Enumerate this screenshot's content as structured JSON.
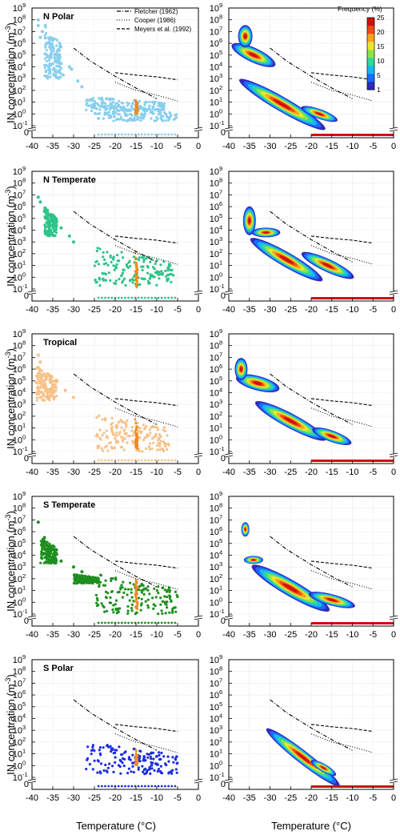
{
  "figure": {
    "ylabel_main": "IN concentration (m",
    "ylabel_sup": "-3",
    "ylabel_end": ")",
    "xlabel": "Temperature (°C)"
  },
  "axes": {
    "x_ticks": [
      "-40",
      "-35",
      "-30",
      "-25",
      "-20",
      "-15",
      "-10",
      "-5",
      "0"
    ],
    "y_exponents": [
      "-1",
      "0",
      "1",
      "2",
      "3",
      "4",
      "5",
      "6",
      "7",
      "8",
      "9"
    ],
    "y_zero_label": "0",
    "y_tick_base": "10"
  },
  "legend": {
    "fletcher": "Fletcher (1962)",
    "cooper": "Cooper (1986)",
    "meyers": "Meyers et al. (1992)"
  },
  "colorbar": {
    "title": "Frequency (%)",
    "ticks": [
      "25",
      "20",
      "15",
      "10",
      "5",
      "1"
    ],
    "colors": [
      "#2e2ab8",
      "#1a6cff",
      "#17b7f5",
      "#2fd89a",
      "#8fe24d",
      "#e7e830",
      "#f6a21e",
      "#f04a18",
      "#cf1010"
    ]
  },
  "panels": [
    {
      "title": "N Polar",
      "color": "#87cfee"
    },
    {
      "title": "N Temperate",
      "color": "#2ec488"
    },
    {
      "title": "Tropical",
      "color": "#f7c188"
    },
    {
      "title": "S Temperate",
      "color": "#1e8f1e"
    },
    {
      "title": "S Polar",
      "color": "#1b2ee0"
    }
  ],
  "highlight_color": "#f08a1c",
  "chart_data": [
    {
      "type": "scatter",
      "panel": "N Polar",
      "xlim": [
        -40,
        0
      ],
      "ylim_log10": [
        -1,
        9
      ],
      "y_break_value": 0,
      "series": [
        {
          "kind": "points",
          "color_key": "#87cfee",
          "description": "IN samples",
          "points": [
            [
              -38.5,
              8.0
            ],
            [
              -38.5,
              7.5
            ],
            [
              -38,
              6.5
            ],
            [
              -37.5,
              7.0
            ],
            [
              -36.5,
              6.0
            ],
            [
              -35.5,
              5.0
            ],
            [
              -33,
              4.3
            ],
            [
              -32.5,
              3.3
            ],
            [
              -31,
              4.0
            ],
            [
              -30.5,
              3.8
            ],
            [
              -29,
              2.8
            ],
            [
              -28,
              2.3
            ]
          ],
          "bands": [
            [
              -37,
              -33,
              3.0,
              7.8
            ],
            [
              -27,
              -8,
              0.2,
              1.5
            ],
            [
              -25,
              -5,
              -0.6,
              0.8
            ]
          ]
        },
        {
          "kind": "points",
          "color_key": "#f08a1c",
          "bands": [
            [
              -15.2,
              -14.6,
              0.0,
              1.4
            ]
          ]
        }
      ],
      "parameterizations": {
        "fletcher": [
          [
            -30,
            5.6
          ],
          [
            -26,
            4.5
          ],
          [
            -20,
            3.2
          ],
          [
            -15,
            2.2
          ],
          [
            -10,
            1.3
          ]
        ],
        "cooper": [
          [
            -20,
            2.7
          ],
          [
            -15,
            2.0
          ],
          [
            -10,
            1.6
          ],
          [
            -5,
            1.1
          ]
        ],
        "meyers": [
          [
            -20,
            3.5
          ],
          [
            -15,
            3.3
          ],
          [
            -10,
            3.15
          ],
          [
            -5,
            2.9
          ]
        ]
      }
    },
    {
      "type": "scatter",
      "panel": "N Temperate",
      "xlim": [
        -40,
        0
      ],
      "ylim_log10": [
        -1,
        9
      ],
      "series": [
        {
          "kind": "points",
          "color_key": "#2ec488",
          "points": [
            [
              -38.5,
              6.8
            ],
            [
              -38,
              6.4
            ],
            [
              -37,
              5.6
            ],
            [
              -36,
              4.8
            ],
            [
              -33,
              4.2
            ],
            [
              -31,
              3.5
            ],
            [
              -30,
              3.0
            ]
          ],
          "bands": [
            [
              -37,
              -34,
              3.5,
              6.0
            ],
            [
              -25,
              -6,
              -0.7,
              2.6
            ]
          ]
        },
        {
          "kind": "points",
          "color_key": "#f08a1c",
          "bands": [
            [
              -15.2,
              -14.6,
              -0.9,
              2.2
            ]
          ]
        }
      ]
    },
    {
      "type": "scatter",
      "panel": "Tropical",
      "xlim": [
        -40,
        0
      ],
      "ylim_log10": [
        -1,
        9
      ],
      "series": [
        {
          "kind": "points",
          "color_key": "#f7c188",
          "points": [
            [
              -38.5,
              7.2
            ],
            [
              -38,
              6.6
            ],
            [
              -36,
              5.5
            ],
            [
              -34,
              5.0
            ],
            [
              -32,
              4.2
            ],
            [
              -30,
              3.6
            ]
          ],
          "bands": [
            [
              -39,
              -34,
              3.3,
              6.3
            ],
            [
              -25,
              -7,
              -1.0,
              2.3
            ]
          ]
        },
        {
          "kind": "points",
          "color_key": "#f08a1c",
          "bands": [
            [
              -15.2,
              -14.6,
              -0.9,
              1.8
            ]
          ]
        }
      ]
    },
    {
      "type": "scatter",
      "panel": "S Temperate",
      "xlim": [
        -40,
        0
      ],
      "ylim_log10": [
        -1,
        9
      ],
      "series": [
        {
          "kind": "points",
          "color_key": "#1e8f1e",
          "points": [
            [
              -38.5,
              6.8
            ],
            [
              -37,
              5.5
            ],
            [
              -35,
              4.5
            ],
            [
              -33,
              3.5
            ],
            [
              -30,
              3.0
            ],
            [
              -28,
              2.6
            ]
          ],
          "bands": [
            [
              -38,
              -34,
              3.3,
              5.5
            ],
            [
              -30,
              -24,
              1.6,
              2.4
            ],
            [
              -25,
              -5,
              -1.0,
              2.5
            ]
          ]
        },
        {
          "kind": "points",
          "color_key": "#f08a1c",
          "bands": [
            [
              -15.2,
              -14.6,
              -0.6,
              2.5
            ]
          ]
        }
      ]
    },
    {
      "type": "scatter",
      "panel": "S Polar",
      "xlim": [
        -40,
        0
      ],
      "ylim_log10": [
        -1,
        9
      ],
      "series": [
        {
          "kind": "points",
          "color_key": "#1b2ee0",
          "bands": [
            [
              -27,
              -5,
              -0.7,
              2.0
            ]
          ]
        },
        {
          "kind": "points",
          "color_key": "#f08a1c",
          "bands": [
            [
              -15.2,
              -14.6,
              0.0,
              1.5
            ]
          ]
        }
      ]
    },
    {
      "type": "heatmap",
      "panel": "N Polar frequency",
      "xlim": [
        -40,
        0
      ],
      "ylim_log10": [
        -1,
        9
      ],
      "zlim_percent": [
        1,
        25
      ]
    },
    {
      "type": "heatmap",
      "panel": "N Temperate frequency",
      "xlim": [
        -40,
        0
      ],
      "ylim_log10": [
        -1,
        9
      ]
    },
    {
      "type": "heatmap",
      "panel": "Tropical frequency",
      "xlim": [
        -40,
        0
      ],
      "ylim_log10": [
        -1,
        9
      ]
    },
    {
      "type": "heatmap",
      "panel": "S Temperate frequency",
      "xlim": [
        -40,
        0
      ],
      "ylim_log10": [
        -1,
        9
      ]
    },
    {
      "type": "heatmap",
      "panel": "S Polar frequency",
      "xlim": [
        -40,
        0
      ],
      "ylim_log10": [
        -1,
        9
      ]
    }
  ]
}
